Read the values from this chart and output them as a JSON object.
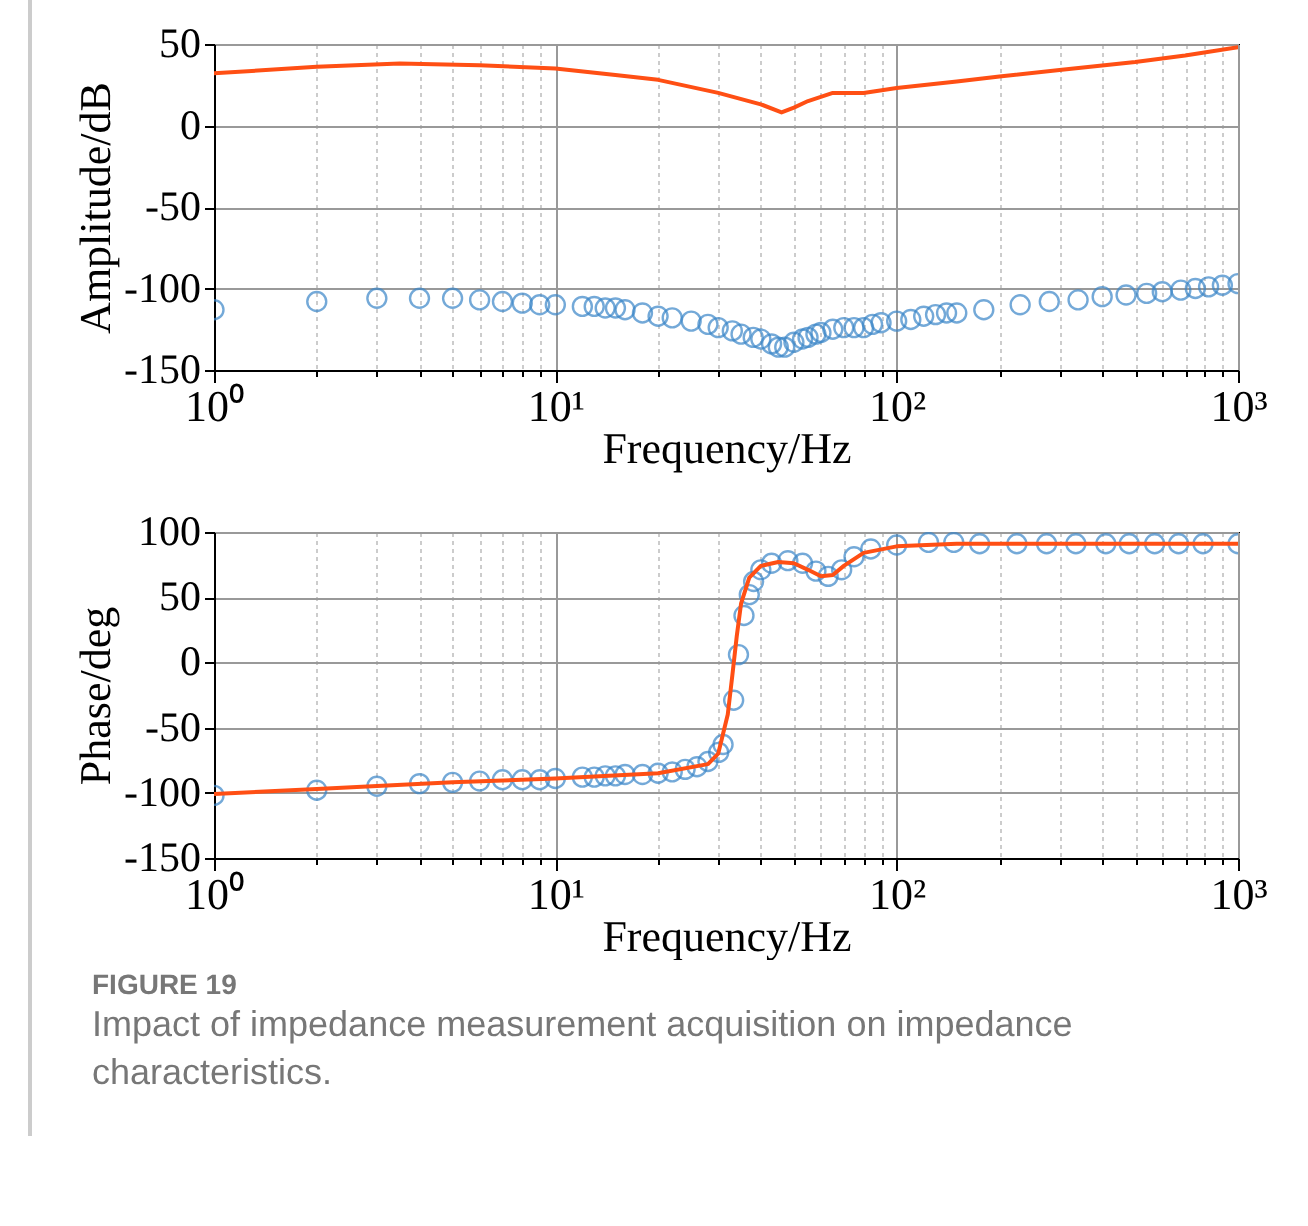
{
  "chart_data": [
    {
      "type": "scatter",
      "xlabel": "Frequency/Hz",
      "ylabel": "Amplitude/dB",
      "log": "x",
      "grid": true,
      "xlim": [
        1,
        1000
      ],
      "ylim": [
        -150,
        50
      ],
      "yticks": [
        -150,
        -100,
        -50,
        0,
        50
      ],
      "xticks": [
        {
          "value": 1,
          "label": "10⁰"
        },
        {
          "value": 2,
          "label": null
        },
        {
          "value": 3,
          "label": null
        },
        {
          "value": 4,
          "label": null
        },
        {
          "value": 5,
          "label": null
        },
        {
          "value": 6,
          "label": null
        },
        {
          "value": 7,
          "label": null
        },
        {
          "value": 8,
          "label": null
        },
        {
          "value": 9,
          "label": null
        },
        {
          "value": 10,
          "label": "10¹"
        },
        {
          "value": 20,
          "label": null
        },
        {
          "value": 30,
          "label": null
        },
        {
          "value": 40,
          "label": null
        },
        {
          "value": 50,
          "label": null
        },
        {
          "value": 60,
          "label": null
        },
        {
          "value": 70,
          "label": null
        },
        {
          "value": 80,
          "label": null
        },
        {
          "value": 90,
          "label": null
        },
        {
          "value": 100,
          "label": "10²"
        },
        {
          "value": 200,
          "label": null
        },
        {
          "value": 300,
          "label": null
        },
        {
          "value": 400,
          "label": null
        },
        {
          "value": 500,
          "label": null
        },
        {
          "value": 600,
          "label": null
        },
        {
          "value": 700,
          "label": null
        },
        {
          "value": 800,
          "label": null
        },
        {
          "value": 900,
          "label": null
        },
        {
          "value": 1000,
          "label": "10³"
        }
      ],
      "series": [
        {
          "type": "line",
          "color": "#ff4f14",
          "line_style": "solid",
          "x": [
            1,
            2,
            3.5,
            6,
            10,
            15,
            20,
            30,
            40,
            46,
            50,
            55,
            65,
            80,
            100,
            150,
            200,
            300,
            500,
            700,
            1000
          ],
          "values": [
            32,
            36,
            38,
            37,
            35,
            31,
            28,
            20,
            13,
            8,
            11,
            15,
            20,
            20,
            23,
            27,
            30,
            34,
            39,
            43,
            48
          ]
        },
        {
          "type": "scatter",
          "color": "#3a86c8",
          "marker": "circle",
          "x": [
            1,
            2,
            3,
            4,
            5,
            6,
            7,
            8,
            9,
            10,
            12,
            13,
            14,
            15,
            16,
            18,
            20,
            22,
            25,
            28,
            30,
            33,
            35,
            38,
            40,
            43,
            45,
            47,
            50,
            53,
            55,
            58,
            60,
            65,
            70,
            75,
            80,
            85,
            90,
            100,
            110,
            120,
            130,
            140,
            150,
            180,
            230,
            280,
            340,
            400,
            470,
            540,
            600,
            680,
            750,
            820,
            900,
            1000
          ],
          "values": [
            -113,
            -108,
            -106,
            -106,
            -106,
            -107,
            -108,
            -109,
            -110,
            -110,
            -111,
            -111,
            -112,
            -112,
            -113,
            -115,
            -117,
            -118,
            -120,
            -122,
            -124,
            -126,
            -128,
            -130,
            -131,
            -134,
            -136,
            -136,
            -133,
            -131,
            -130,
            -128,
            -127,
            -125,
            -124,
            -124,
            -124,
            -122,
            -121,
            -120,
            -119,
            -117,
            -116,
            -115,
            -115,
            -113,
            -110,
            -108,
            -107,
            -105,
            -104,
            -103,
            -102,
            -101,
            -100,
            -99,
            -98,
            -97
          ]
        }
      ]
    },
    {
      "type": "scatter",
      "xlabel": "Frequency/Hz",
      "ylabel": "Phase/deg",
      "log": "x",
      "grid": true,
      "xlim": [
        1,
        1000
      ],
      "ylim": [
        -150,
        100
      ],
      "yticks": [
        -150,
        -100,
        -50,
        0,
        50,
        100
      ],
      "xticks": [
        {
          "value": 1,
          "label": "10⁰"
        },
        {
          "value": 2,
          "label": null
        },
        {
          "value": 3,
          "label": null
        },
        {
          "value": 4,
          "label": null
        },
        {
          "value": 5,
          "label": null
        },
        {
          "value": 6,
          "label": null
        },
        {
          "value": 7,
          "label": null
        },
        {
          "value": 8,
          "label": null
        },
        {
          "value": 9,
          "label": null
        },
        {
          "value": 10,
          "label": "10¹"
        },
        {
          "value": 20,
          "label": null
        },
        {
          "value": 30,
          "label": null
        },
        {
          "value": 40,
          "label": null
        },
        {
          "value": 50,
          "label": null
        },
        {
          "value": 60,
          "label": null
        },
        {
          "value": 70,
          "label": null
        },
        {
          "value": 80,
          "label": null
        },
        {
          "value": 90,
          "label": null
        },
        {
          "value": 100,
          "label": "10²"
        },
        {
          "value": 200,
          "label": null
        },
        {
          "value": 300,
          "label": null
        },
        {
          "value": 400,
          "label": null
        },
        {
          "value": 500,
          "label": null
        },
        {
          "value": 600,
          "label": null
        },
        {
          "value": 700,
          "label": null
        },
        {
          "value": 800,
          "label": null
        },
        {
          "value": 900,
          "label": null
        },
        {
          "value": 1000,
          "label": "10³"
        }
      ],
      "annotations": [
        "FIGURE 19",
        "Impact of impedance measurement acquisition on impedance characteristics."
      ],
      "series": [
        {
          "type": "scatter",
          "color": "#3a86c8",
          "marker": "circle",
          "x": [
            1,
            2,
            3,
            4,
            5,
            6,
            7,
            8,
            9,
            10,
            12,
            13,
            14,
            15,
            16,
            18,
            20,
            22,
            24,
            26,
            28,
            30.1,
            31,
            33.3,
            34.4,
            35.7,
            37,
            38.1,
            40,
            43,
            48,
            53,
            58,
            63,
            69,
            75,
            84,
            100,
            124,
            147,
            175,
            225,
            275,
            335,
            410,
            480,
            570,
            670,
            790,
            1000
          ],
          "values": [
            -102,
            -98,
            -95,
            -93,
            -92,
            -91,
            -90,
            -90,
            -90,
            -89,
            -88,
            -88,
            -87,
            -87,
            -86,
            -86,
            -85,
            -84,
            -82,
            -80,
            -76,
            -69,
            -63,
            -29,
            6,
            36,
            52,
            62,
            71,
            76,
            78,
            76,
            70,
            66,
            71,
            81,
            87,
            90,
            92,
            92,
            91,
            91,
            91,
            91,
            91,
            91,
            91,
            91,
            91,
            91
          ]
        },
        {
          "type": "line",
          "color": "#ff4f14",
          "line_style": "solid",
          "x": [
            1,
            2,
            5,
            10,
            20,
            28,
            30,
            32,
            33,
            34,
            35,
            37,
            40,
            45,
            50,
            55,
            60,
            65,
            70,
            80,
            100,
            150,
            1000
          ],
          "values": [
            -101,
            -97,
            -92,
            -89,
            -85,
            -78,
            -70,
            -40,
            -10,
            20,
            45,
            65,
            74,
            77,
            76,
            71,
            66,
            67,
            74,
            84,
            89,
            91,
            91
          ]
        }
      ]
    }
  ]
}
